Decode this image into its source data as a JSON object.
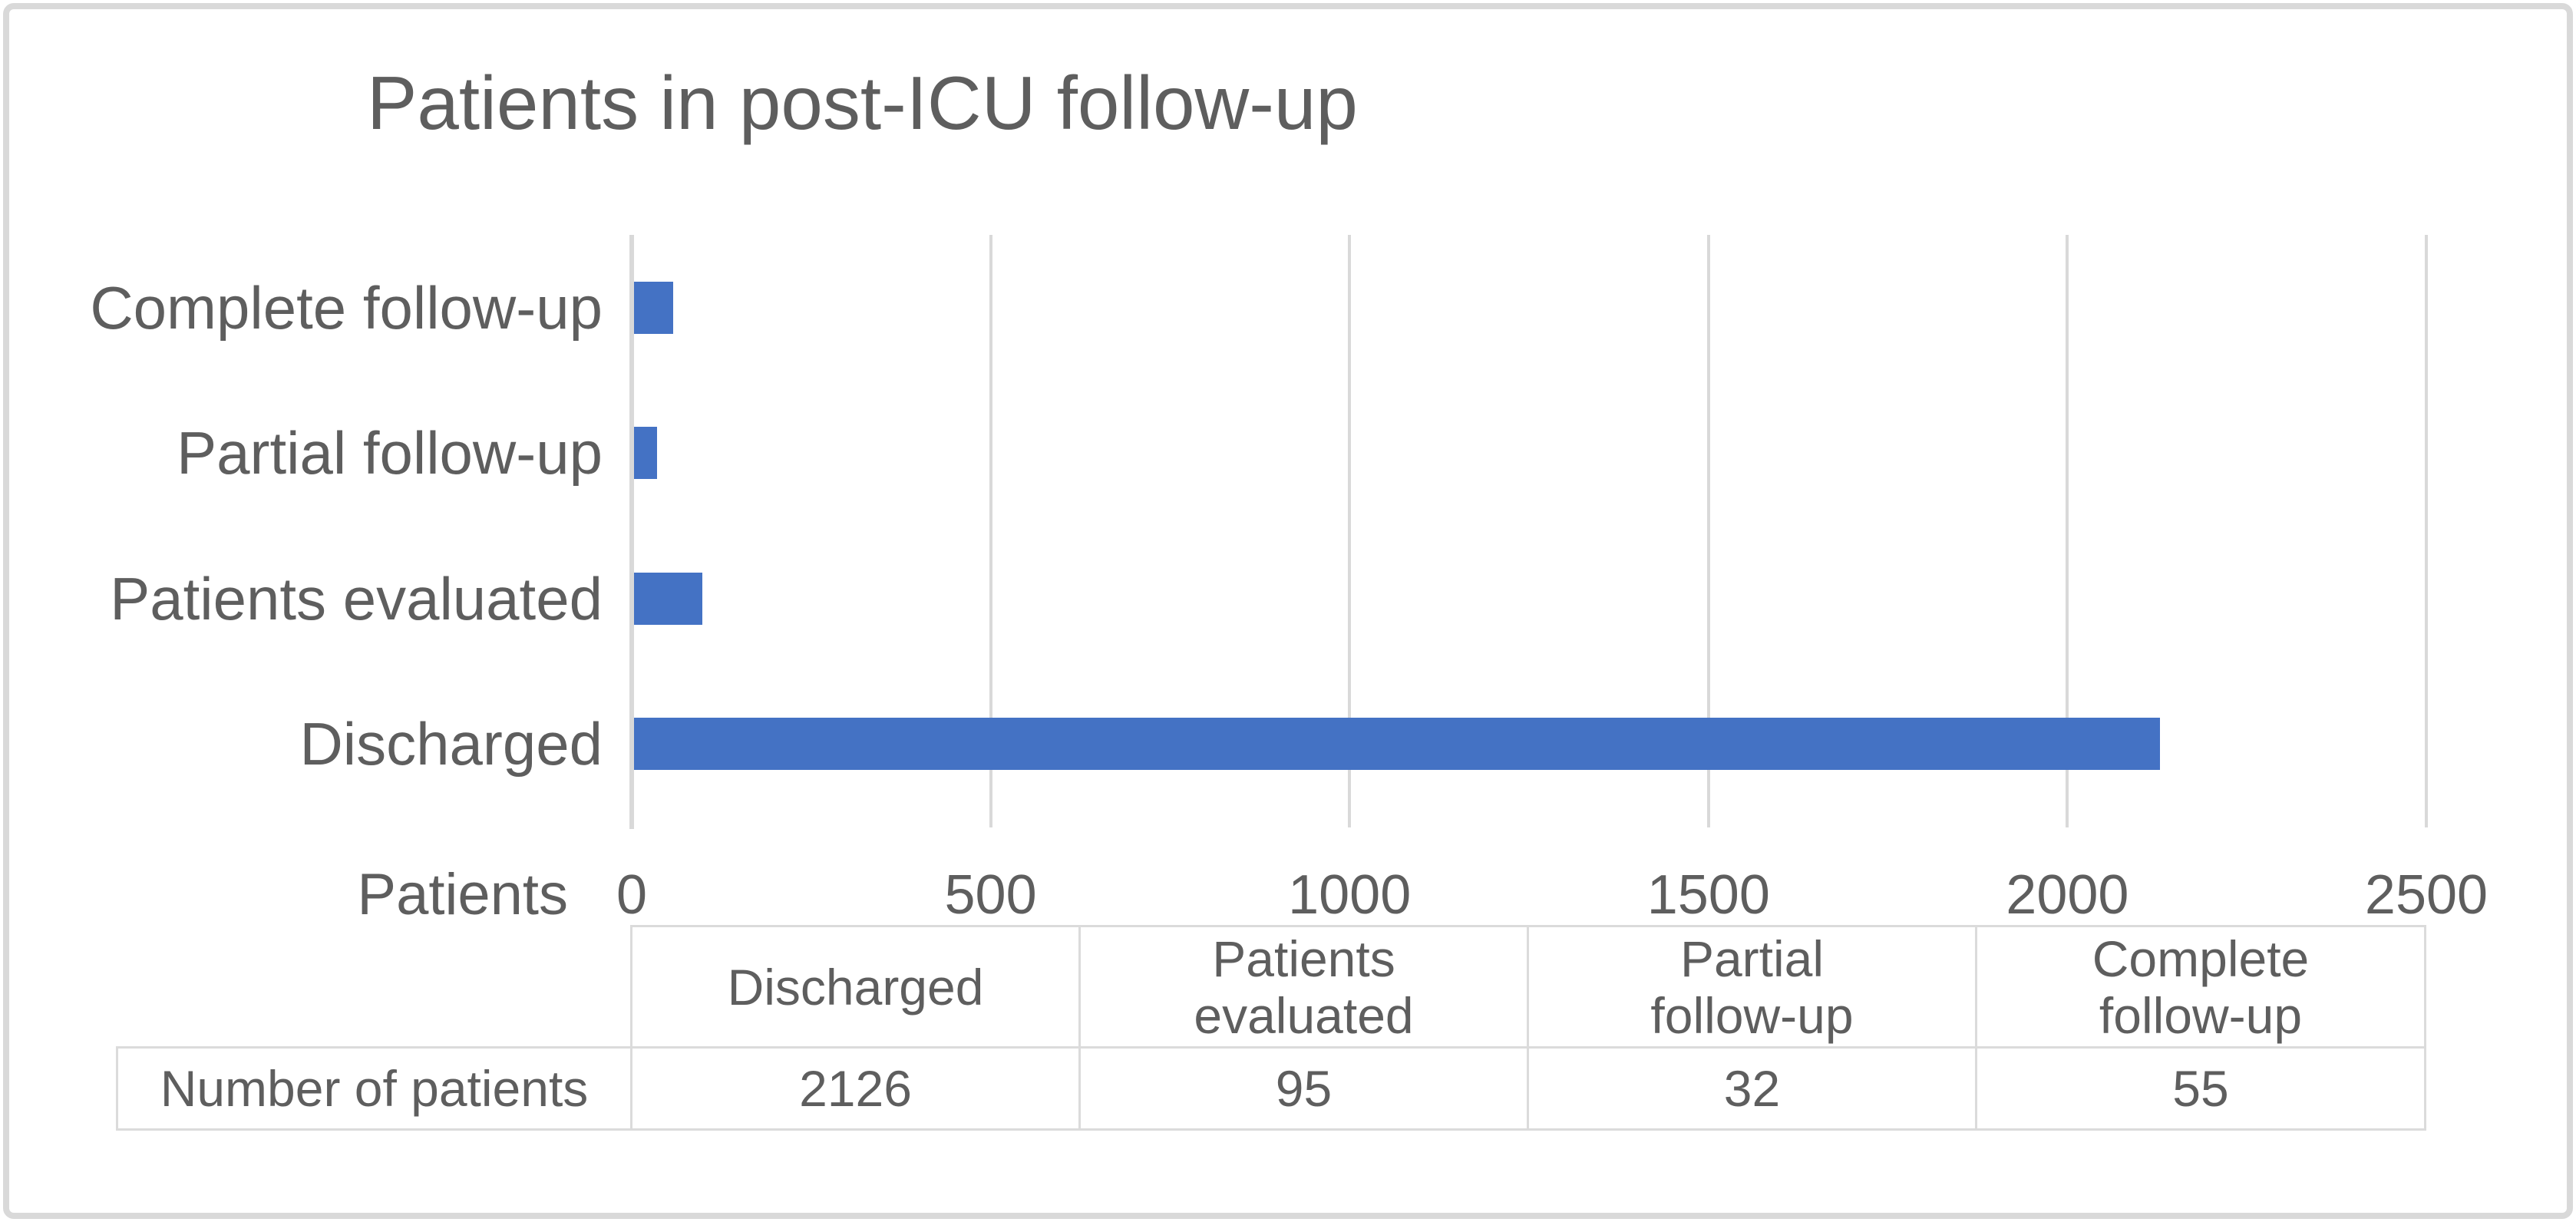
{
  "chart_data": {
    "type": "bar",
    "orientation": "horizontal",
    "title": "Patients in post-ICU follow-up",
    "categories": [
      "Complete follow-up",
      "Partial follow-up",
      "Patients evaluated",
      "Discharged"
    ],
    "values": [
      55,
      32,
      95,
      2126
    ],
    "xlabel": "Patients",
    "ylabel": "",
    "xlim": [
      0,
      2500
    ],
    "xticks": [
      0,
      500,
      1000,
      1500,
      2000,
      2500
    ],
    "grid": true,
    "legend": "none",
    "bar_color": "#4472C4"
  },
  "data_table": {
    "row_label": "Number of patients",
    "columns": [
      {
        "label": "Discharged",
        "lines": [
          "Discharged"
        ],
        "value": "2126"
      },
      {
        "label": "Patients evaluated",
        "lines": [
          "Patients",
          "evaluated"
        ],
        "value": "95"
      },
      {
        "label": "Partial follow-up",
        "lines": [
          "Partial",
          "follow-up"
        ],
        "value": "32"
      },
      {
        "label": "Complete follow-up",
        "lines": [
          "Complete",
          "follow-up"
        ],
        "value": "55"
      }
    ]
  },
  "colors": {
    "bar": "#4472C4",
    "text": "#5E5E5E",
    "gridline": "#D9D9D9",
    "frame_border": "#D9D9D9",
    "table_border": "#DBDBDB"
  }
}
